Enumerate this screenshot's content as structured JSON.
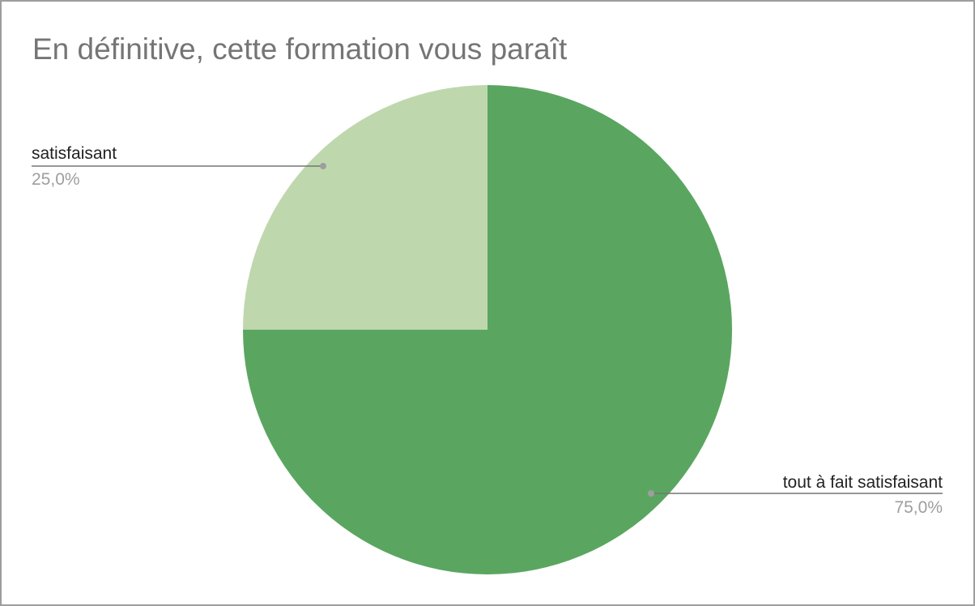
{
  "chart_data": {
    "type": "pie",
    "title": "En définitive, cette formation vous paraît",
    "slices": [
      {
        "label": "tout à fait satisfaisant",
        "value": 75.0,
        "display": "75,0%",
        "color": "#5aa660"
      },
      {
        "label": "satisfaisant",
        "value": 25.0,
        "display": "25,0%",
        "color": "#bfd7ad"
      }
    ],
    "leader_line_color": "#757575"
  }
}
